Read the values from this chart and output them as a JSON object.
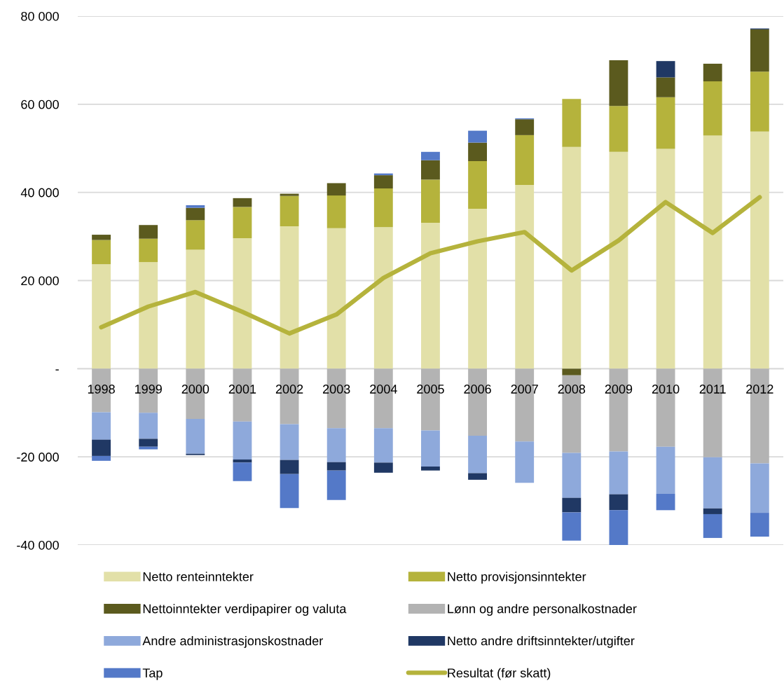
{
  "chart_data": {
    "type": "bar",
    "stacked": true,
    "categories": [
      "1998",
      "1999",
      "2000",
      "2001",
      "2002",
      "2003",
      "2004",
      "2005",
      "2006",
      "2007",
      "2008",
      "2009",
      "2010",
      "2011",
      "2012"
    ],
    "series": [
      {
        "name": "Netto renteinntekter",
        "color": "#e2e0a8",
        "values": [
          23700,
          24200,
          27000,
          29600,
          32300,
          31900,
          32100,
          33100,
          36300,
          41700,
          50300,
          49200,
          49900,
          52900,
          53800
        ]
      },
      {
        "name": "Netto provisjonsinntekter",
        "color": "#b5b33c",
        "values": [
          5500,
          5300,
          6700,
          7100,
          6900,
          7400,
          8800,
          9800,
          10800,
          11300,
          10900,
          10400,
          11700,
          12300,
          13600
        ]
      },
      {
        "name": "Nettoinntekter verdipapirer og valuta",
        "color": "#5b5a1e",
        "values": [
          1200,
          3100,
          2800,
          2000,
          500,
          2800,
          3000,
          4400,
          4200,
          3600,
          -1500,
          10400,
          4500,
          4000,
          9600
        ]
      },
      {
        "name": "Lønn og andre personalkostnader",
        "color": "#b3b3b3",
        "values": [
          -9900,
          -10000,
          -11400,
          -12000,
          -12600,
          -13500,
          -13500,
          -14000,
          -15200,
          -16500,
          -17600,
          -18800,
          -17700,
          -20100,
          -21500
        ]
      },
      {
        "name": "Andre administrasjonskostnader",
        "color": "#8ea9db",
        "values": [
          -6200,
          -5900,
          -7900,
          -8600,
          -8100,
          -7700,
          -7800,
          -8200,
          -8500,
          -9400,
          -10200,
          -9700,
          -10700,
          -11600,
          -11200
        ]
      },
      {
        "name": "Netto andre driftsinntekter/utgifter",
        "color": "#203864",
        "values": [
          -3700,
          -1800,
          -300,
          -700,
          -3200,
          -1900,
          -2300,
          -900,
          -1500,
          null,
          -3300,
          -3600,
          3700,
          -1300,
          200
        ]
      },
      {
        "name": "Tap",
        "color": "#5479c8",
        "values": [
          -1100,
          -600,
          600,
          -4200,
          -7700,
          -6700,
          400,
          1900,
          2700,
          200,
          -6400,
          -7900,
          -3700,
          -5400,
          -5400
        ]
      },
      {
        "name": "Resultat (før skatt)",
        "type": "line",
        "color": "#b5b33c",
        "values": [
          9400,
          14100,
          17400,
          12900,
          8000,
          12300,
          20600,
          26200,
          28900,
          31000,
          22300,
          29100,
          37800,
          30800,
          38900
        ]
      }
    ],
    "ylim": [
      -40000,
      80000
    ],
    "yticks": [
      {
        "value": -40000,
        "label": "-40 000"
      },
      {
        "value": -20000,
        "label": "-20 000"
      },
      {
        "value": 0,
        "label": "-"
      },
      {
        "value": 20000,
        "label": "20 000"
      },
      {
        "value": 40000,
        "label": "40 000"
      },
      {
        "value": 60000,
        "label": "60 000"
      },
      {
        "value": 80000,
        "label": "80 000"
      }
    ],
    "grid": "y",
    "legend": "bottom"
  }
}
